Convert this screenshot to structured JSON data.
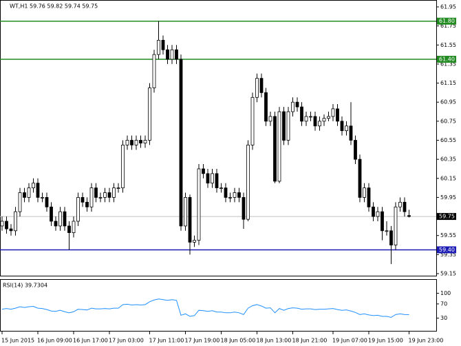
{
  "chart_data": [
    {
      "type": "candlestick",
      "title": "WT,H1 59.76 59.82 59.74 59.75",
      "categories": [
        "15 Jun 2015",
        null,
        null,
        null,
        null,
        null,
        null,
        null,
        "16 Jun 09:00",
        null,
        null,
        null,
        null,
        null,
        null,
        null,
        "16 Jun 17:00",
        null,
        null,
        null,
        null,
        null,
        null,
        null,
        "17 Jun 03:00",
        null,
        null,
        null,
        null,
        null,
        null,
        null,
        null,
        "17 Jun 11:00",
        null,
        null,
        null,
        null,
        null,
        null,
        null,
        "17 Jun 19:00",
        null,
        null,
        null,
        null,
        null,
        null,
        null,
        "18 Jun 05:00",
        null,
        null,
        null,
        null,
        null,
        null,
        null,
        "18 Jun 13:00",
        null,
        null,
        null,
        null,
        null,
        null,
        null,
        "18 Jun 21:00",
        null,
        null,
        null,
        null,
        null,
        null,
        null,
        null,
        "19 Jun 07:00",
        null,
        null,
        null,
        null,
        null,
        null,
        null,
        "19 Jun 15:00",
        null,
        null,
        null,
        null,
        null,
        null,
        null,
        null,
        "19 Jun 23:00"
      ],
      "open": [
        59.65,
        59.7,
        59.62,
        59.6,
        59.8,
        60.0,
        59.95,
        60.05,
        60.1,
        59.95,
        59.95,
        59.85,
        59.7,
        59.65,
        59.8,
        59.65,
        59.58,
        59.7,
        59.95,
        59.9,
        59.85,
        60.05,
        59.95,
        59.95,
        60.0,
        59.95,
        60.05,
        60.05,
        60.5,
        60.55,
        60.5,
        60.55,
        60.52,
        60.55,
        61.1,
        61.45,
        61.6,
        61.5,
        61.4,
        61.5,
        61.4,
        59.65,
        59.95,
        59.48,
        59.5,
        60.25,
        60.2,
        60.1,
        60.2,
        60.05,
        60.05,
        59.95,
        59.95,
        60.0,
        59.95,
        59.72,
        60.5,
        61.0,
        61.2,
        61.05,
        60.75,
        60.8,
        60.12,
        60.85,
        60.55,
        60.85,
        60.95,
        60.9,
        60.75,
        60.8,
        60.8,
        60.7,
        60.75,
        60.78,
        60.8,
        60.88,
        60.75,
        60.65,
        60.7,
        60.55,
        60.35,
        59.95,
        60.05,
        59.85,
        59.75,
        59.8,
        59.6,
        59.6,
        59.45,
        59.85,
        59.9,
        59.76
      ],
      "high": [
        59.75,
        59.75,
        59.67,
        59.85,
        60.05,
        60.05,
        60.1,
        60.15,
        60.15,
        60.0,
        60.0,
        59.9,
        59.75,
        59.85,
        59.85,
        59.7,
        59.75,
        60.0,
        60.0,
        59.95,
        60.1,
        60.1,
        60.0,
        60.05,
        60.05,
        60.1,
        60.1,
        60.55,
        60.6,
        60.6,
        60.6,
        60.6,
        60.6,
        61.15,
        61.5,
        61.8,
        61.65,
        61.55,
        61.55,
        61.55,
        61.45,
        60.0,
        59.98,
        59.55,
        60.3,
        60.3,
        60.25,
        60.25,
        60.25,
        60.1,
        60.1,
        60.0,
        60.05,
        60.05,
        60.0,
        60.55,
        61.05,
        61.25,
        61.25,
        61.1,
        60.85,
        60.85,
        60.9,
        60.9,
        60.9,
        61.0,
        61.0,
        60.95,
        60.85,
        60.85,
        60.85,
        60.8,
        60.82,
        60.85,
        60.93,
        60.93,
        60.8,
        60.75,
        60.95,
        60.6,
        60.4,
        60.1,
        60.1,
        59.9,
        59.85,
        59.85,
        59.7,
        59.65,
        59.9,
        59.95,
        59.95,
        59.82
      ],
      "low": [
        59.6,
        59.57,
        59.55,
        59.55,
        59.75,
        59.9,
        59.9,
        60.0,
        59.9,
        59.9,
        59.8,
        59.65,
        59.6,
        59.6,
        59.6,
        59.4,
        59.53,
        59.65,
        59.85,
        59.8,
        59.8,
        59.9,
        59.9,
        59.9,
        59.9,
        59.9,
        60.0,
        60.0,
        60.45,
        60.45,
        60.45,
        60.47,
        60.47,
        60.5,
        61.05,
        61.4,
        61.45,
        61.35,
        61.35,
        61.35,
        59.6,
        59.6,
        59.35,
        59.43,
        59.45,
        60.15,
        60.05,
        60.05,
        60.0,
        60.0,
        59.9,
        59.9,
        59.9,
        59.9,
        59.62,
        59.7,
        60.45,
        60.95,
        61.0,
        60.7,
        60.7,
        60.1,
        60.1,
        60.5,
        60.5,
        60.8,
        60.85,
        60.7,
        60.7,
        60.75,
        60.65,
        60.65,
        60.7,
        60.75,
        60.75,
        60.7,
        60.6,
        60.6,
        60.5,
        60.3,
        59.9,
        59.9,
        59.8,
        59.7,
        59.7,
        59.5,
        59.55,
        59.25,
        59.4,
        59.8,
        59.75,
        59.74
      ],
      "close": [
        59.7,
        59.62,
        59.6,
        59.8,
        60.0,
        59.95,
        60.05,
        60.1,
        59.95,
        59.95,
        59.85,
        59.7,
        59.65,
        59.8,
        59.65,
        59.58,
        59.7,
        59.95,
        59.9,
        59.85,
        60.05,
        59.95,
        59.95,
        60.0,
        59.95,
        60.05,
        60.05,
        60.5,
        60.55,
        60.5,
        60.55,
        60.52,
        60.55,
        61.1,
        61.45,
        61.6,
        61.5,
        61.4,
        61.5,
        61.4,
        59.65,
        59.95,
        59.48,
        59.5,
        60.25,
        60.2,
        60.1,
        60.2,
        60.05,
        60.05,
        59.95,
        59.95,
        60.0,
        59.95,
        59.72,
        60.5,
        61.0,
        61.2,
        61.05,
        60.75,
        60.8,
        60.12,
        60.85,
        60.55,
        60.85,
        60.95,
        60.9,
        60.75,
        60.8,
        60.8,
        60.7,
        60.75,
        60.78,
        60.8,
        60.88,
        60.75,
        60.65,
        60.7,
        60.55,
        60.35,
        59.95,
        60.05,
        59.85,
        59.75,
        59.8,
        59.6,
        59.6,
        59.45,
        59.85,
        59.9,
        59.8,
        59.75
      ],
      "ylim": [
        59.15,
        61.95
      ],
      "yticks": [
        61.95,
        61.75,
        61.55,
        61.35,
        61.15,
        60.95,
        60.75,
        60.55,
        60.35,
        60.15,
        59.95,
        59.55,
        59.35,
        59.15
      ],
      "levels": [
        {
          "value": 61.8,
          "label": "61.80",
          "color": "#228b22"
        },
        {
          "value": 61.4,
          "label": "61.40",
          "color": "#228b22"
        },
        {
          "value": 59.4,
          "label": "59.40",
          "color": "#1c1cb4"
        }
      ],
      "current_price": 59.75
    },
    {
      "type": "line",
      "title": "RSI(14) 39.7304",
      "color": "#1e90ff",
      "values": [
        55,
        57,
        55,
        58,
        62,
        60,
        62,
        63,
        58,
        57,
        54,
        50,
        49,
        52,
        48,
        45,
        48,
        55,
        54,
        53,
        58,
        56,
        56,
        57,
        56,
        58,
        58,
        68,
        69,
        67,
        68,
        67,
        68,
        76,
        81,
        84,
        82,
        80,
        82,
        80,
        38,
        42,
        35,
        37,
        52,
        51,
        49,
        51,
        47,
        47,
        45,
        45,
        47,
        45,
        40,
        58,
        65,
        68,
        64,
        58,
        59,
        45,
        57,
        52,
        57,
        59,
        58,
        55,
        56,
        56,
        54,
        55,
        55,
        56,
        57,
        54,
        52,
        53,
        50,
        46,
        40,
        42,
        39,
        37,
        38,
        35,
        35,
        32,
        40,
        42,
        40,
        39.7304
      ],
      "ylim": [
        0,
        130
      ],
      "yticks": [
        100,
        70,
        30
      ]
    }
  ]
}
